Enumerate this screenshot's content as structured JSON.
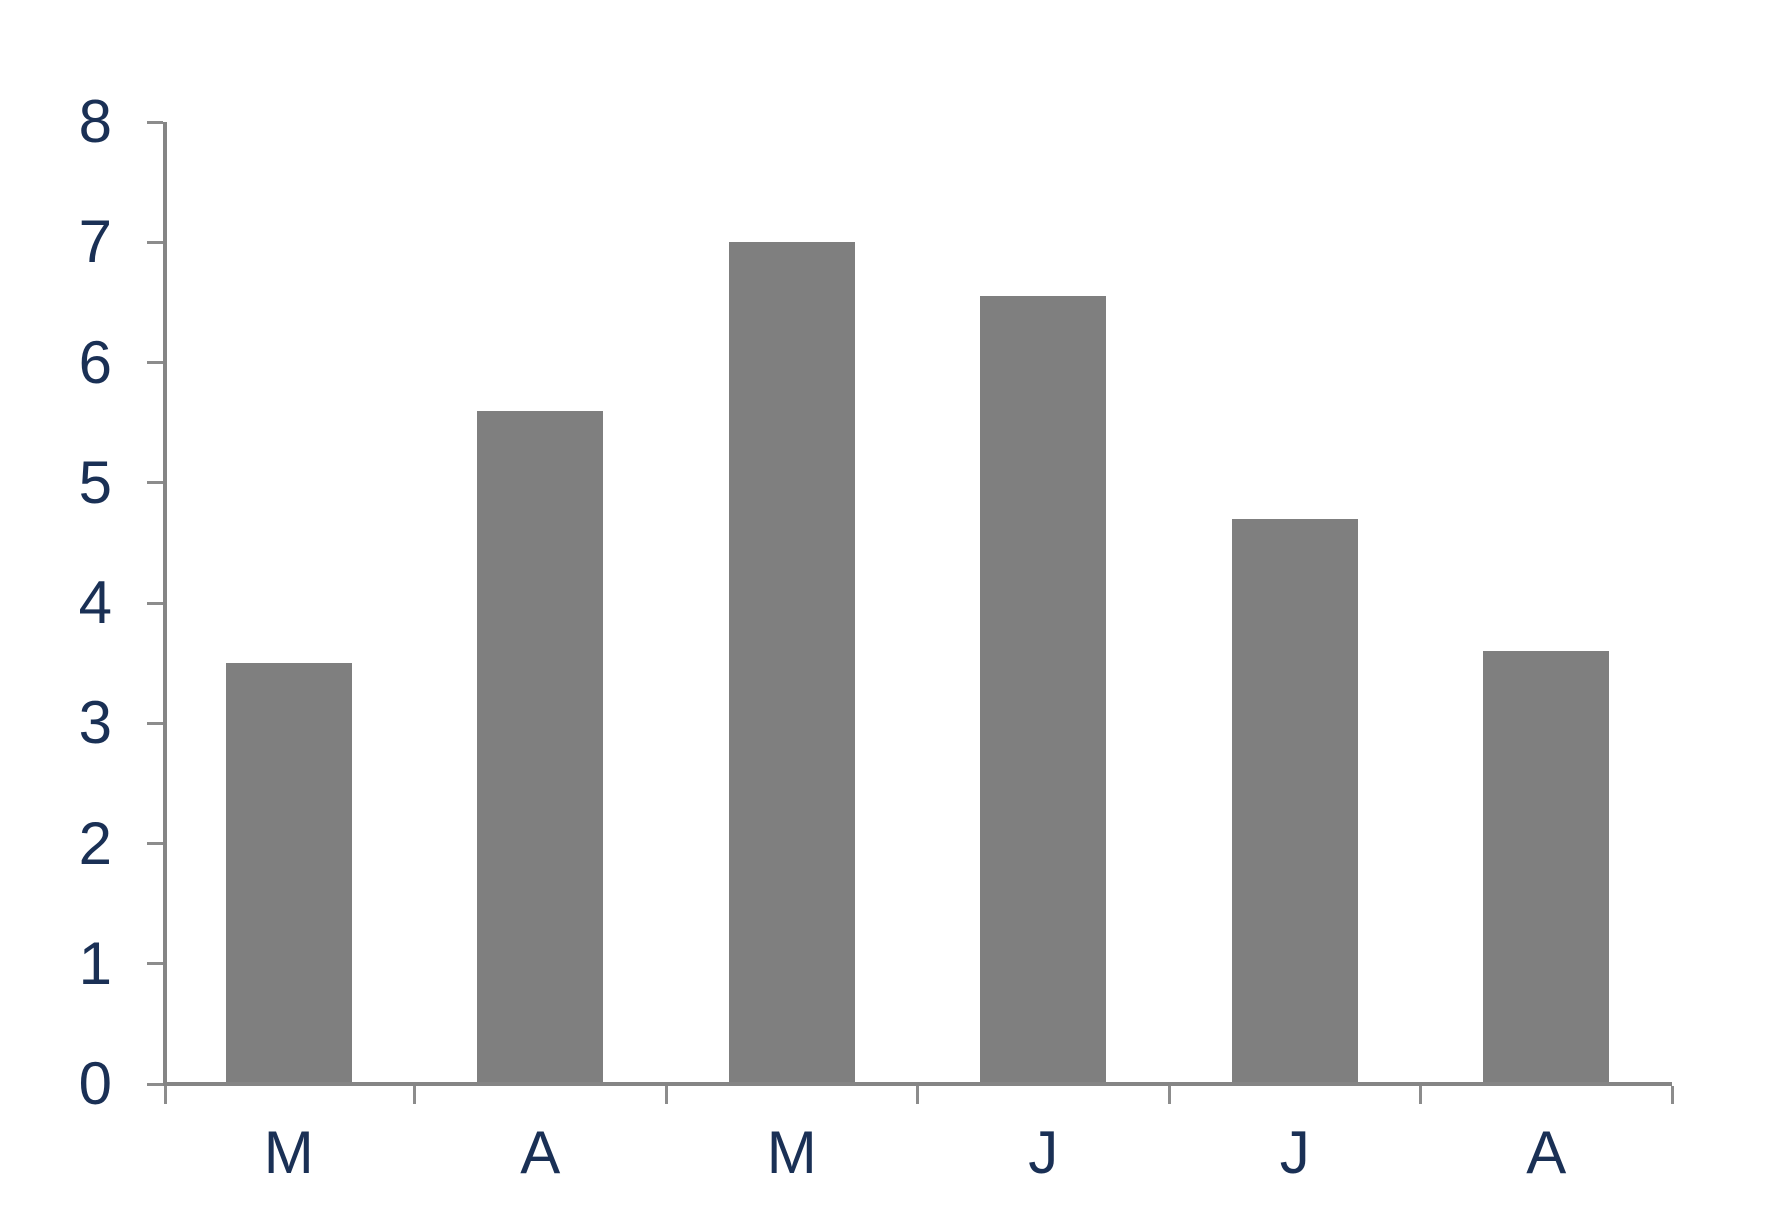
{
  "chart_data": {
    "type": "bar",
    "categories": [
      "M",
      "A",
      "M",
      "J",
      "J",
      "A"
    ],
    "values": [
      3.5,
      5.6,
      7.0,
      6.55,
      4.7,
      3.6
    ],
    "title": "",
    "subtitle": "",
    "xlabel": "",
    "ylabel": "",
    "ylim": [
      0,
      8
    ],
    "yticks": [
      0,
      1,
      2,
      3,
      4,
      5,
      6,
      7,
      8
    ],
    "grid": false,
    "legend": null,
    "colors": {
      "bar_fill": "#7F7F7F",
      "axis_line": "#858585",
      "tick_mark": "#8C8C8C",
      "label_text": "#1A3055",
      "background": "#FFFFFF"
    }
  }
}
